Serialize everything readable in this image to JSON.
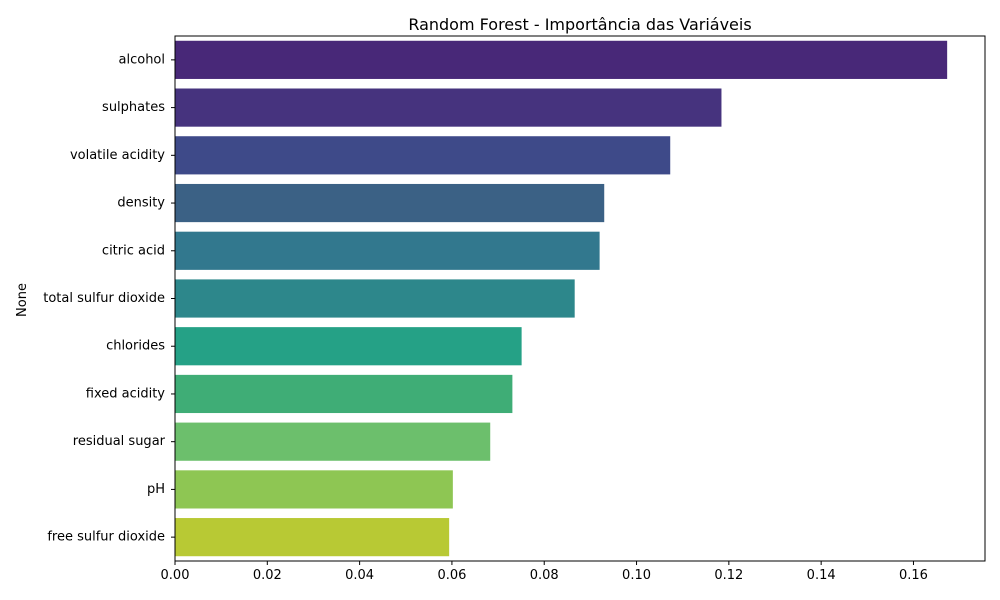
{
  "chart_data": {
    "type": "bar",
    "orientation": "horizontal",
    "title": "Random Forest - Importância das Variáveis",
    "xlabel": "",
    "ylabel": "None",
    "categories": [
      "alcohol",
      "sulphates",
      "volatile acidity",
      "density",
      "citric acid",
      "total sulfur dioxide",
      "chlorides",
      "fixed acidity",
      "residual sugar",
      "pH",
      "free sulfur dioxide"
    ],
    "values": [
      0.1673,
      0.1184,
      0.1073,
      0.093,
      0.092,
      0.0866,
      0.0751,
      0.0731,
      0.0683,
      0.0602,
      0.0594
    ],
    "colors": [
      "#482878",
      "#46337e",
      "#3e4a89",
      "#3b6185",
      "#32788e",
      "#2d878b",
      "#25a186",
      "#3fad76",
      "#6cbf6c",
      "#8ec653",
      "#b8c934"
    ],
    "xticks": [
      "0.00",
      "0.02",
      "0.04",
      "0.06",
      "0.08",
      "0.10",
      "0.12",
      "0.14",
      "0.16"
    ],
    "xlim": [
      0,
      0.1755
    ],
    "grid": false
  }
}
